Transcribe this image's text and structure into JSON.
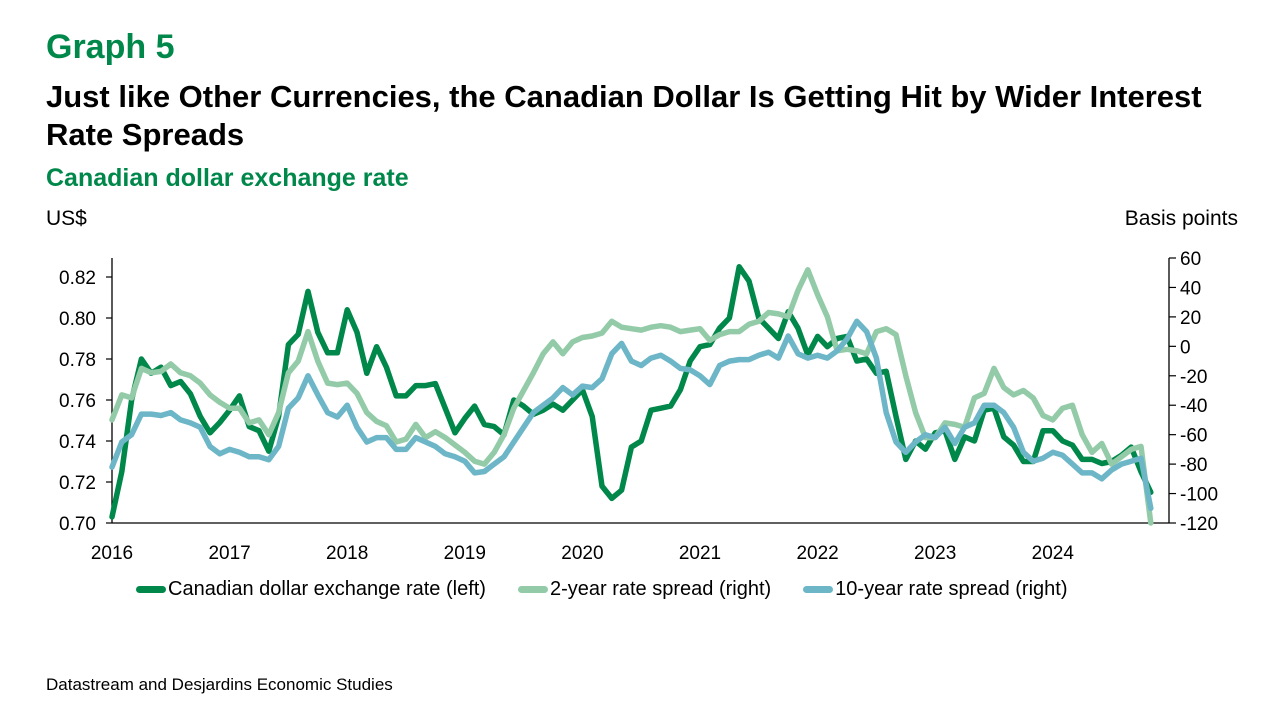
{
  "header": {
    "graph_label": "Graph 5",
    "title": "Just like Other Currencies, the Canadian Dollar Is Getting Hit by Wider Interest Rate Spreads",
    "subtitle": "Canadian dollar exchange rate"
  },
  "source": "Datastream and Desjardins Economic Studies",
  "chart_data": {
    "type": "line",
    "title": "Canadian dollar exchange rate",
    "ylabel_left": "US$",
    "ylabel_right": "Basis points",
    "ylim_left": [
      0.7,
      0.82
    ],
    "ylim_right": [
      -120,
      60
    ],
    "yticks_left": [
      "0.70",
      "0.72",
      "0.74",
      "0.76",
      "0.78",
      "0.80",
      "0.82"
    ],
    "yticks_right": [
      "-120",
      "-100",
      "-80",
      "-60",
      "-40",
      "-20",
      "0",
      "20",
      "40",
      "60"
    ],
    "xticks": [
      "2016",
      "2017",
      "2018",
      "2019",
      "2020",
      "2021",
      "2022",
      "2023",
      "2024"
    ],
    "x_start": "2016-01",
    "frequency": "monthly",
    "legend_position": "bottom",
    "grid": false,
    "series": [
      {
        "name": "Canadian dollar exchange rate (left)",
        "axis": "left",
        "color": "#00874a",
        "values": [
          0.703,
          0.725,
          0.76,
          0.78,
          0.773,
          0.776,
          0.767,
          0.769,
          0.763,
          0.752,
          0.744,
          0.749,
          0.755,
          0.762,
          0.747,
          0.745,
          0.735,
          0.752,
          0.787,
          0.792,
          0.813,
          0.793,
          0.783,
          0.783,
          0.804,
          0.793,
          0.773,
          0.786,
          0.776,
          0.762,
          0.762,
          0.767,
          0.767,
          0.768,
          0.756,
          0.744,
          0.751,
          0.757,
          0.748,
          0.747,
          0.743,
          0.76,
          0.757,
          0.753,
          0.755,
          0.758,
          0.755,
          0.76,
          0.765,
          0.752,
          0.718,
          0.712,
          0.716,
          0.737,
          0.74,
          0.755,
          0.756,
          0.757,
          0.765,
          0.779,
          0.786,
          0.787,
          0.795,
          0.8,
          0.825,
          0.818,
          0.8,
          0.795,
          0.79,
          0.803,
          0.795,
          0.782,
          0.791,
          0.786,
          0.79,
          0.791,
          0.779,
          0.78,
          0.773,
          0.774,
          0.752,
          0.731,
          0.74,
          0.736,
          0.744,
          0.745,
          0.731,
          0.742,
          0.74,
          0.755,
          0.756,
          0.742,
          0.738,
          0.73,
          0.73,
          0.745,
          0.745,
          0.74,
          0.738,
          0.731,
          0.731,
          0.729,
          0.73,
          0.733,
          0.737,
          0.725,
          0.715
        ]
      },
      {
        "name": "2-year rate spread (right)",
        "axis": "right",
        "color": "#93cba8",
        "values": [
          -50,
          -33,
          -35,
          -15,
          -18,
          -17,
          -12,
          -18,
          -20,
          -25,
          -33,
          -38,
          -42,
          -42,
          -52,
          -50,
          -60,
          -45,
          -18,
          -10,
          10,
          -10,
          -25,
          -26,
          -25,
          -32,
          -45,
          -51,
          -54,
          -65,
          -63,
          -53,
          -62,
          -58,
          -62,
          -67,
          -72,
          -78,
          -80,
          -72,
          -60,
          -42,
          -30,
          -18,
          -5,
          3,
          -5,
          3,
          6,
          7,
          9,
          17,
          13,
          12,
          11,
          13,
          14,
          13,
          10,
          11,
          12,
          4,
          8,
          10,
          10,
          15,
          17,
          23,
          22,
          20,
          38,
          52,
          35,
          20,
          -3,
          -2,
          -3,
          -5,
          10,
          12,
          8,
          -20,
          -45,
          -62,
          -62,
          -52,
          -53,
          -55,
          -35,
          -32,
          -15,
          -28,
          -33,
          -30,
          -35,
          -47,
          -50,
          -42,
          -40,
          -60,
          -72,
          -66,
          -80,
          -75,
          -70,
          -68,
          -120
        ]
      },
      {
        "name": "10-year rate spread (right)",
        "axis": "right",
        "color": "#6cb6c8",
        "values": [
          -82,
          -65,
          -60,
          -46,
          -46,
          -47,
          -45,
          -50,
          -52,
          -55,
          -68,
          -73,
          -70,
          -72,
          -75,
          -75,
          -77,
          -68,
          -42,
          -35,
          -20,
          -33,
          -45,
          -48,
          -40,
          -55,
          -65,
          -62,
          -62,
          -70,
          -70,
          -62,
          -65,
          -68,
          -73,
          -75,
          -78,
          -86,
          -85,
          -80,
          -75,
          -65,
          -55,
          -45,
          -40,
          -35,
          -28,
          -33,
          -27,
          -28,
          -22,
          -5,
          2,
          -10,
          -13,
          -8,
          -6,
          -10,
          -15,
          -16,
          -20,
          -26,
          -13,
          -10,
          -9,
          -9,
          -6,
          -4,
          -8,
          7,
          -5,
          -8,
          -6,
          -8,
          -3,
          5,
          17,
          10,
          -8,
          -45,
          -65,
          -72,
          -65,
          -60,
          -62,
          -55,
          -66,
          -55,
          -52,
          -40,
          -40,
          -45,
          -55,
          -72,
          -78,
          -76,
          -72,
          -74,
          -80,
          -86,
          -86,
          -90,
          -84,
          -80,
          -78,
          -76,
          -110
        ]
      }
    ]
  }
}
